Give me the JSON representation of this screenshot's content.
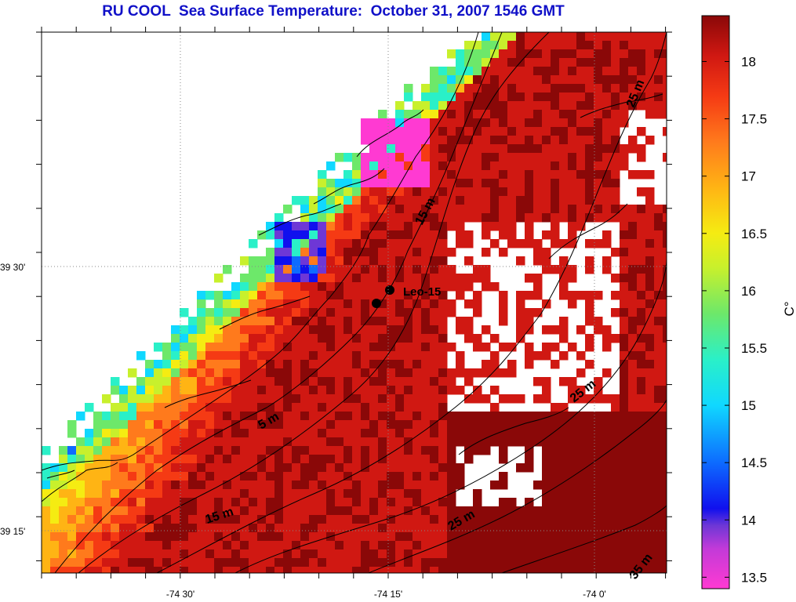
{
  "title": "RU COOL  Sea Surface Temperature:  October 31, 2007 1546 GMT",
  "axes": {
    "y_ticks": [
      "39 30'",
      "39 15'"
    ],
    "x_ticks": [
      "-74 30'",
      "-74 15'",
      "-74 0'"
    ]
  },
  "colorbar": {
    "unit_label": "C°",
    "ticks": [
      "18",
      "17.5",
      "17",
      "16.5",
      "16",
      "15.5",
      "15",
      "14.5",
      "14",
      "13.5"
    ],
    "range": [
      13.4,
      18.4
    ],
    "colors": [
      "#ff3ad2",
      "#c23ad8",
      "#6e37d6",
      "#1010ee",
      "#0d6bff",
      "#10d8ff",
      "#2af0c8",
      "#6de86a",
      "#c8f02c",
      "#f5ec12",
      "#ffb414",
      "#ff7a1c",
      "#f53a14",
      "#d01812",
      "#8a0808"
    ]
  },
  "contour_labels": [
    "25 m",
    "15 m",
    "5 m",
    "15 m",
    "25 m",
    "25 m",
    "35 m"
  ],
  "station": {
    "name": "Leo-15"
  },
  "land_color": "#ffffff",
  "coast_color": "#000000"
}
